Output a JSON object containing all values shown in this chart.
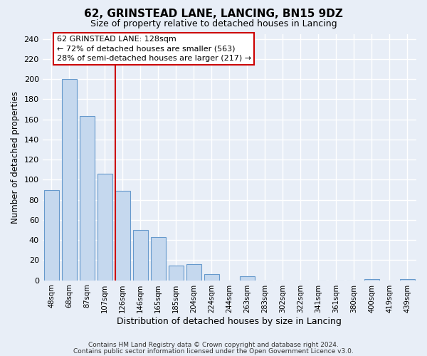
{
  "title": "62, GRINSTEAD LANE, LANCING, BN15 9DZ",
  "subtitle": "Size of property relative to detached houses in Lancing",
  "xlabel": "Distribution of detached houses by size in Lancing",
  "ylabel": "Number of detached properties",
  "bar_labels": [
    "48sqm",
    "68sqm",
    "87sqm",
    "107sqm",
    "126sqm",
    "146sqm",
    "165sqm",
    "185sqm",
    "204sqm",
    "224sqm",
    "244sqm",
    "263sqm",
    "283sqm",
    "302sqm",
    "322sqm",
    "341sqm",
    "361sqm",
    "380sqm",
    "400sqm",
    "419sqm",
    "439sqm"
  ],
  "bar_values": [
    90,
    200,
    163,
    106,
    89,
    50,
    43,
    15,
    16,
    6,
    0,
    4,
    0,
    0,
    0,
    0,
    0,
    0,
    1,
    0,
    1
  ],
  "bar_color": "#c5d8ee",
  "bar_edge_color": "#6699cc",
  "reference_line_color": "#cc0000",
  "annotation_title": "62 GRINSTEAD LANE: 128sqm",
  "annotation_line1": "← 72% of detached houses are smaller (563)",
  "annotation_line2": "28% of semi-detached houses are larger (217) →",
  "annotation_box_facecolor": "#ffffff",
  "annotation_box_edgecolor": "#cc0000",
  "ylim": [
    0,
    245
  ],
  "yticks": [
    0,
    20,
    40,
    60,
    80,
    100,
    120,
    140,
    160,
    180,
    200,
    220,
    240
  ],
  "footnote1": "Contains HM Land Registry data © Crown copyright and database right 2024.",
  "footnote2": "Contains public sector information licensed under the Open Government Licence v3.0.",
  "bg_color": "#e8eef7",
  "grid_color": "#ffffff"
}
